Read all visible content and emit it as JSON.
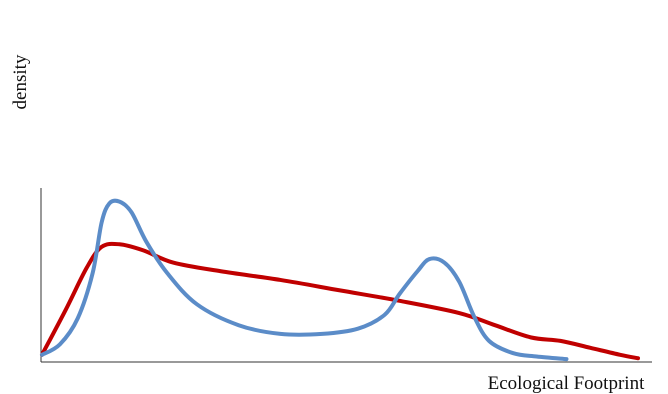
{
  "chart_data": {
    "type": "line",
    "title": "",
    "xlabel": "Ecological Footprint",
    "ylabel": "density",
    "xlim": [
      0,
      1
    ],
    "ylim": [
      0,
      1
    ],
    "x_ticks": [],
    "y_ticks": [],
    "grid": false,
    "legend": null,
    "series": [
      {
        "color": "#C00000",
        "points": [
          [
            0.0,
            0.03
          ],
          [
            0.04,
            0.29
          ],
          [
            0.075,
            0.53
          ],
          [
            0.1,
            0.65
          ],
          [
            0.13,
            0.665
          ],
          [
            0.17,
            0.63
          ],
          [
            0.22,
            0.56
          ],
          [
            0.3,
            0.51
          ],
          [
            0.4,
            0.46
          ],
          [
            0.5,
            0.4
          ],
          [
            0.6,
            0.34
          ],
          [
            0.7,
            0.27
          ],
          [
            0.76,
            0.2
          ],
          [
            0.82,
            0.13
          ],
          [
            0.87,
            0.11
          ],
          [
            0.92,
            0.07
          ],
          [
            0.97,
            0.03
          ],
          [
            1.0,
            0.01
          ]
        ]
      },
      {
        "color": "#5B8CC8",
        "points": [
          [
            0.0,
            0.03
          ],
          [
            0.03,
            0.09
          ],
          [
            0.06,
            0.24
          ],
          [
            0.085,
            0.5
          ],
          [
            0.1,
            0.79
          ],
          [
            0.113,
            0.9
          ],
          [
            0.13,
            0.91
          ],
          [
            0.15,
            0.85
          ],
          [
            0.175,
            0.68
          ],
          [
            0.21,
            0.5
          ],
          [
            0.26,
            0.32
          ],
          [
            0.33,
            0.2
          ],
          [
            0.4,
            0.15
          ],
          [
            0.47,
            0.15
          ],
          [
            0.53,
            0.18
          ],
          [
            0.575,
            0.26
          ],
          [
            0.6,
            0.38
          ],
          [
            0.63,
            0.51
          ],
          [
            0.65,
            0.58
          ],
          [
            0.675,
            0.56
          ],
          [
            0.7,
            0.45
          ],
          [
            0.725,
            0.25
          ],
          [
            0.75,
            0.11
          ],
          [
            0.79,
            0.04
          ],
          [
            0.83,
            0.02
          ],
          [
            0.88,
            0.005
          ]
        ]
      }
    ]
  }
}
